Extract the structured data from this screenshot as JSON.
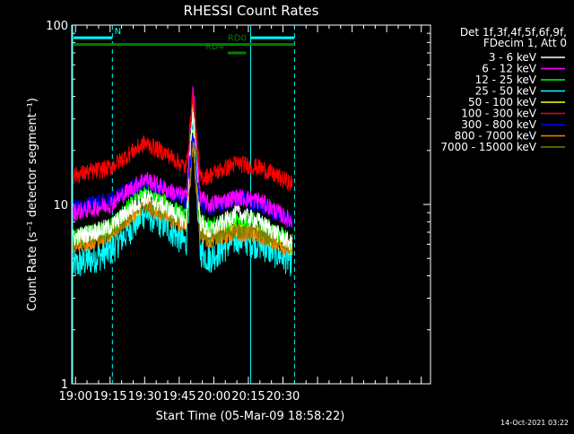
{
  "chart_data": {
    "type": "line",
    "title": "RHESSI Count Rates",
    "xlabel": "Start Time (05-Mar-09 18:58:22)",
    "ylabel": "Count Rate (s⁻¹ detector segment⁻¹)",
    "y_scale": "log",
    "ylim": [
      1,
      100
    ],
    "xlim": [
      "18:58:22",
      "21:34:00"
    ],
    "x_ticks": [
      "19:00",
      "19:15",
      "19:30",
      "19:45",
      "20:00",
      "20:15",
      "20:30"
    ],
    "y_ticks": [
      "1",
      "10",
      "100"
    ],
    "legend_header": [
      "Det 1f,3f,4f,5f,6f,9f,",
      "FDecim 1, Att 0"
    ],
    "legend_position": "right",
    "footer_timestamp": "14-Oct-2021 03:22",
    "series": [
      {
        "name": "3 - 6 keV",
        "color": "#ffffff",
        "x": [
          "18:59",
          "19:15",
          "19:30",
          "19:40",
          "19:48",
          "19:51",
          "19:54",
          "19:58",
          "20:10",
          "20:20",
          "20:34"
        ],
        "values": [
          6.5,
          7.5,
          11,
          9.5,
          8,
          35,
          8,
          7,
          9,
          8,
          6
        ]
      },
      {
        "name": "6 - 12 keV",
        "color": "#ff00ff",
        "x": [
          "18:59",
          "19:15",
          "19:30",
          "19:40",
          "19:48",
          "19:51",
          "19:54",
          "19:58",
          "20:10",
          "20:20",
          "20:34"
        ],
        "values": [
          9,
          10,
          14,
          12,
          11,
          45,
          11,
          10,
          11,
          10.5,
          8
        ]
      },
      {
        "name": "12 - 25 keV",
        "color": "#00ff00",
        "x": [
          "18:59",
          "19:15",
          "19:30",
          "19:40",
          "19:48",
          "19:51",
          "19:54",
          "19:58",
          "20:10",
          "20:20",
          "20:34"
        ],
        "values": [
          6.5,
          7.5,
          12,
          10,
          8.5,
          40,
          8,
          7.5,
          8.5,
          8,
          6.2
        ]
      },
      {
        "name": "25 - 50 keV",
        "color": "#00ffff",
        "x": [
          "18:59",
          "19:15",
          "19:30",
          "19:40",
          "19:48",
          "19:51",
          "19:54",
          "19:58",
          "20:10",
          "20:20",
          "20:34"
        ],
        "values": [
          4.5,
          5.5,
          9,
          7.5,
          6,
          30,
          5.5,
          5,
          6.5,
          6,
          4.8
        ]
      },
      {
        "name": "50 - 100 keV",
        "color": "#ffff00",
        "x": [
          "18:59",
          "19:15",
          "19:30",
          "19:40",
          "19:48",
          "19:51",
          "19:54",
          "19:58",
          "20:10",
          "20:20",
          "20:34"
        ],
        "values": [
          6,
          7,
          10.5,
          9,
          8,
          28,
          7.5,
          6.5,
          7.5,
          7,
          5.8
        ]
      },
      {
        "name": "100 - 300 keV",
        "color": "#ff0000",
        "x": [
          "18:59",
          "19:15",
          "19:30",
          "19:40",
          "19:48",
          "19:51",
          "19:54",
          "19:58",
          "20:10",
          "20:20",
          "20:34"
        ],
        "values": [
          14.5,
          16,
          22,
          19,
          16,
          40,
          14,
          14.5,
          17,
          16,
          13
        ]
      },
      {
        "name": "300 - 800 keV",
        "color": "#0000ff",
        "x": [
          "18:59",
          "19:15",
          "19:30",
          "19:40",
          "19:48",
          "19:51",
          "19:54",
          "19:58",
          "20:10",
          "20:20",
          "20:34"
        ],
        "values": [
          9.5,
          10.5,
          13.5,
          12,
          10.5,
          25,
          10,
          9.5,
          11,
          10,
          8
        ]
      },
      {
        "name": "800 - 7000 keV",
        "color": "#ff8000",
        "x": [
          "18:59",
          "19:15",
          "19:30",
          "19:40",
          "19:48",
          "19:51",
          "19:54",
          "19:58",
          "20:10",
          "20:20",
          "20:34"
        ],
        "values": [
          5.8,
          6.8,
          10,
          8.5,
          7.5,
          22,
          7,
          6.3,
          7,
          6.7,
          5.6
        ]
      },
      {
        "name": "7000 - 15000 keV",
        "color": "#808000",
        "x": [
          "18:59",
          "19:15",
          "19:30",
          "19:40",
          "19:48",
          "19:51",
          "19:54",
          "19:58",
          "20:10",
          "20:20",
          "20:34"
        ],
        "values": [
          6,
          7,
          10.2,
          8.8,
          7.8,
          23,
          7.2,
          6.5,
          7.2,
          6.9,
          5.8
        ]
      }
    ],
    "state_bars": [
      {
        "label": "N",
        "color": "#00ffff",
        "start": "18:58",
        "end": "19:16",
        "y": 85
      },
      {
        "label": "",
        "color": "#00ffff",
        "start": "20:16",
        "end": "20:35",
        "y": 85
      },
      {
        "label": "RD0",
        "color": "#008000",
        "start": "18:58",
        "end": "20:35",
        "y": 78
      },
      {
        "label": "RD4",
        "color": "#008000",
        "start": "20:06",
        "end": "20:14",
        "y": 70
      }
    ],
    "vertical_markers": [
      {
        "time": "18:58:22",
        "style": "solid",
        "color": "#00ffff"
      },
      {
        "time": "19:16",
        "style": "dashed",
        "color": "#00ffff"
      },
      {
        "time": "20:16",
        "style": "solid",
        "color": "#00ffff"
      },
      {
        "time": "20:35",
        "style": "dashed",
        "color": "#00ffff"
      }
    ]
  }
}
